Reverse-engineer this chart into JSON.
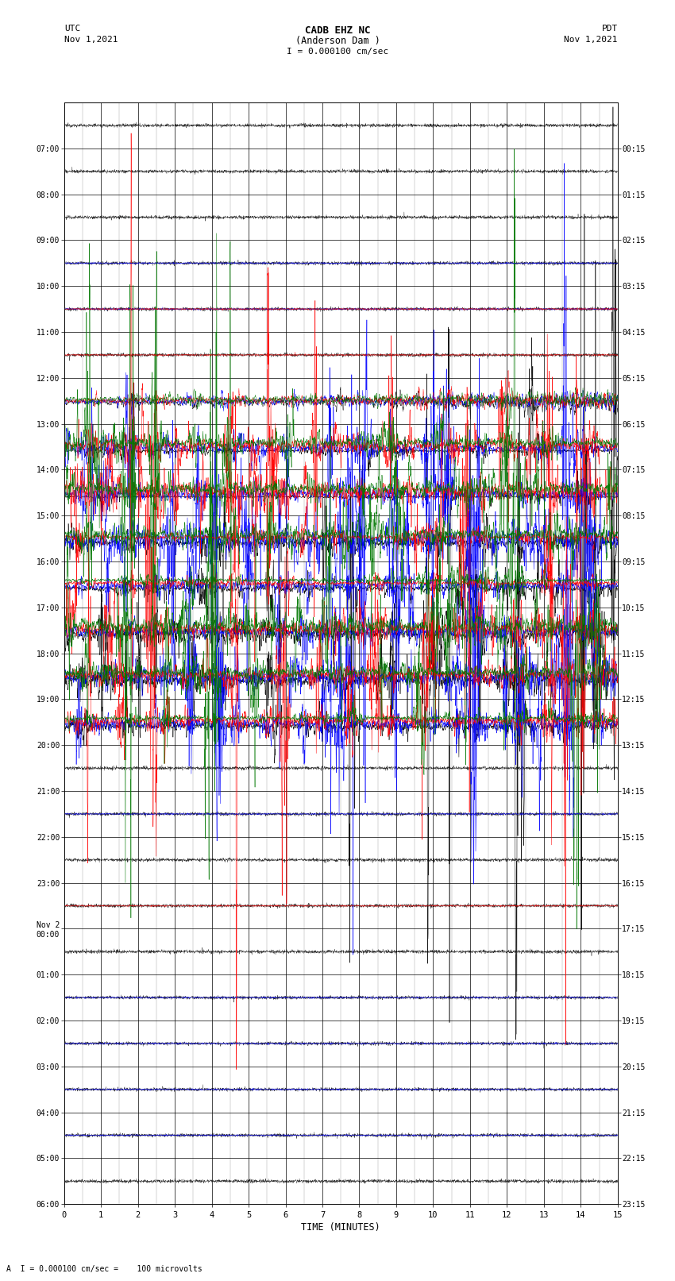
{
  "title_line1": "CADB EHZ NC",
  "title_line2": "(Anderson Dam )",
  "title_line3": "I = 0.000100 cm/sec",
  "left_label_line1": "UTC",
  "left_label_line2": "Nov 1,2021",
  "right_label_line1": "PDT",
  "right_label_line2": "Nov 1,2021",
  "bottom_label": "A  I = 0.000100 cm/sec =    100 microvolts",
  "xlabel": "TIME (MINUTES)",
  "background_color": "#ffffff",
  "num_rows": 24,
  "minutes_per_row": 15,
  "row_labels_utc": [
    "07:00",
    "08:00",
    "09:00",
    "10:00",
    "11:00",
    "12:00",
    "13:00",
    "14:00",
    "15:00",
    "16:00",
    "17:00",
    "18:00",
    "19:00",
    "20:00",
    "21:00",
    "22:00",
    "23:00",
    "Nov 2\n00:00",
    "01:00",
    "02:00",
    "03:00",
    "04:00",
    "05:00",
    "06:00"
  ],
  "row_labels_pdt": [
    "00:15",
    "01:15",
    "02:15",
    "03:15",
    "04:15",
    "05:15",
    "06:15",
    "07:15",
    "08:15",
    "09:15",
    "10:15",
    "11:15",
    "12:15",
    "13:15",
    "14:15",
    "15:15",
    "16:15",
    "17:15",
    "18:15",
    "19:15",
    "20:15",
    "21:15",
    "22:15",
    "23:15"
  ],
  "high_activity_rows": [
    7,
    8,
    9,
    10,
    11,
    12,
    13
  ],
  "medium_activity_rows": [
    6
  ],
  "low_activity_rows_colored": [
    14,
    15,
    16,
    17,
    18,
    19,
    20,
    21,
    22,
    23
  ],
  "signal_colors": [
    "#000000",
    "#0000ff",
    "#ff0000",
    "#007700"
  ],
  "seed": 12345
}
